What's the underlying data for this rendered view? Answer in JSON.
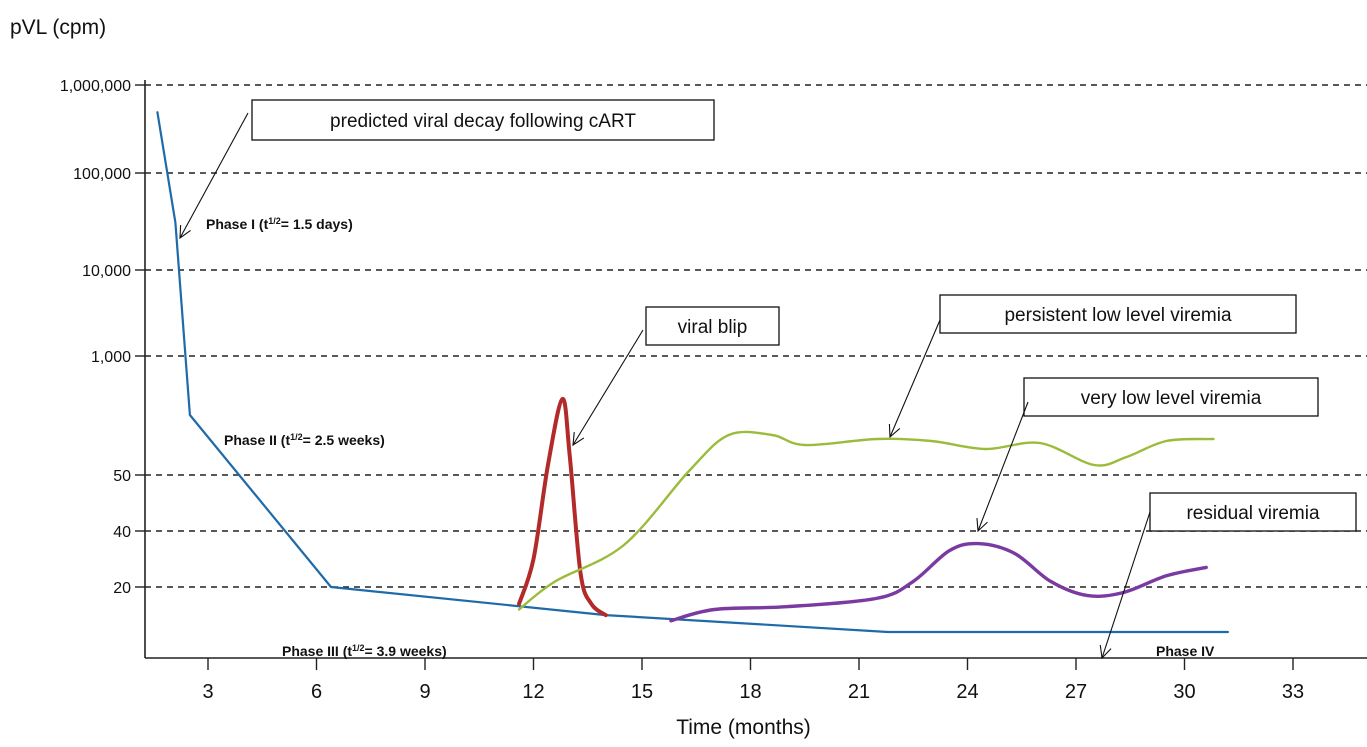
{
  "chart_data": {
    "type": "line",
    "ylabel": "pVL (cpm)",
    "xlabel": "Time (months)",
    "y_scale": "categorical log levels (non-uniform)",
    "y_ticks": [
      "1,000,000",
      "100,000",
      "10,000",
      "1,000",
      "50",
      "40",
      "20"
    ],
    "x_ticks": [
      3,
      6,
      9,
      12,
      15,
      18,
      21,
      24,
      27,
      30,
      33
    ],
    "x_range": [
      1,
      34
    ],
    "grid": "dashed horizontal lines at each y tick",
    "series": [
      {
        "id": "decay",
        "color": "#1f6aa8",
        "points": [
          [
            1.6,
            500000
          ],
          [
            2.1,
            30000
          ],
          [
            2.5,
            80
          ],
          [
            6.4,
            20
          ],
          [
            14,
            15
          ],
          [
            21.8,
            12
          ],
          [
            31.2,
            12
          ]
        ]
      },
      {
        "id": "blip",
        "color": "#b22a2a",
        "points": [
          [
            11.6,
            17
          ],
          [
            12.0,
            30
          ],
          [
            12.4,
            55
          ],
          [
            12.8,
            88
          ],
          [
            13.0,
            60
          ],
          [
            13.3,
            25
          ],
          [
            13.6,
            17
          ],
          [
            14.0,
            15
          ]
        ]
      },
      {
        "id": "persistent",
        "color": "#9bbb3b",
        "points": [
          [
            11.6,
            16
          ],
          [
            12.6,
            22
          ],
          [
            14.5,
            35
          ],
          [
            16.3,
            52
          ],
          [
            17.4,
            70
          ],
          [
            18.6,
            70
          ],
          [
            19.5,
            65
          ],
          [
            21.5,
            68
          ],
          [
            23,
            67
          ],
          [
            24.5,
            63
          ],
          [
            26,
            66
          ],
          [
            27.5,
            55
          ],
          [
            28.4,
            59
          ],
          [
            29.5,
            67
          ],
          [
            30.8,
            68
          ]
        ]
      },
      {
        "id": "very-low",
        "color": "#7b3aa0",
        "points": [
          [
            15.8,
            14
          ],
          [
            17,
            16
          ],
          [
            19,
            16.5
          ],
          [
            21.5,
            18
          ],
          [
            22.5,
            22
          ],
          [
            23.5,
            33
          ],
          [
            24.3,
            35.5
          ],
          [
            25.3,
            32
          ],
          [
            26.3,
            22
          ],
          [
            27.3,
            18.5
          ],
          [
            28.3,
            19
          ],
          [
            29.5,
            24
          ],
          [
            30.6,
            27
          ]
        ]
      }
    ],
    "annotations": [
      {
        "key": "decay",
        "text": "predicted viral decay following cART"
      },
      {
        "key": "blip",
        "text": "viral blip"
      },
      {
        "key": "persistent",
        "text": "persistent low level viremia"
      },
      {
        "key": "verylow",
        "text": "very low level viremia"
      },
      {
        "key": "residual",
        "text": "residual viremia"
      }
    ],
    "phase_labels": [
      {
        "name": "Phase I",
        "half_life": "1.5 days"
      },
      {
        "name": "Phase II",
        "half_life": "2.5 weeks"
      },
      {
        "name": "Phase III",
        "half_life": "3.9 weeks"
      },
      {
        "name": "Phase IV"
      }
    ]
  }
}
